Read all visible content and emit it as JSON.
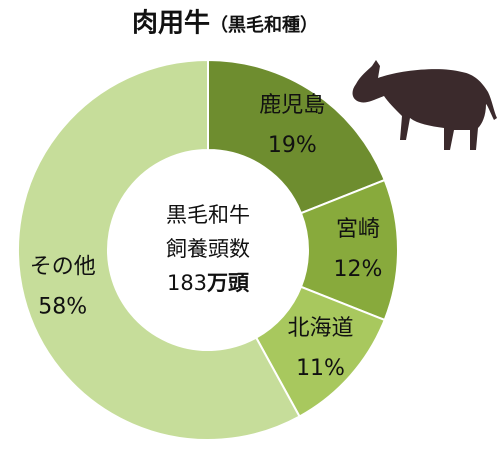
{
  "chart_data": {
    "type": "donut",
    "title": "肉用牛",
    "subtitle": "（黒毛和種）",
    "categories": [
      "鹿児島",
      "宮崎",
      "北海道",
      "その他"
    ],
    "values": [
      19,
      12,
      11,
      58
    ],
    "value_labels": [
      "19%",
      "12%",
      "11%",
      "58%"
    ],
    "colors": [
      "#6e8d2f",
      "#88aa3c",
      "#a8c85e",
      "#c6dd9a"
    ],
    "center_lines": [
      "黒毛和牛",
      "飼養頭数"
    ],
    "center_value": 183,
    "center_unit": "万頭"
  }
}
